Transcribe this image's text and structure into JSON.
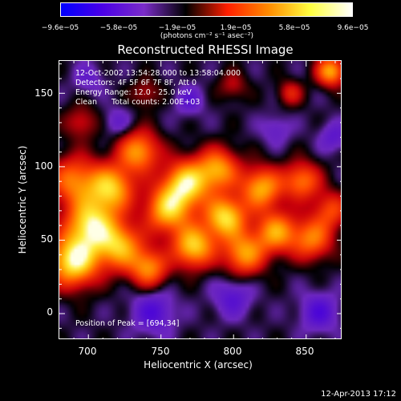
{
  "colorbar": {
    "ticks": [
      "−9.6e−05",
      "−5.8e−05",
      "−1.9e−05",
      "1.9e−05",
      "5.8e−05",
      "9.6e−05"
    ],
    "unit_label": "(photons cm⁻² s⁻¹ asec⁻²)",
    "colors": [
      "#0000ff",
      "#4a00e6",
      "#7a2cc8",
      "#000000",
      "#ff1e00",
      "#ff8c00",
      "#ffff40",
      "#ffffff"
    ]
  },
  "title": "Reconstructed RHESSI Image",
  "info": {
    "time_range": "12-Oct-2002 13:54:28.000 to 13:58:04.000",
    "detectors": "Detectors: 4F 5F 6F 7F 8F, Att 0",
    "energy": "Energy Range: 12.0 - 25.0 keV",
    "clean_label": "Clean",
    "counts": "Total counts: 2.00E+03",
    "peak": "Position of Peak = [694,34]"
  },
  "axes": {
    "xlabel": "Heliocentric X (arcsec)",
    "ylabel": "Heliocentric Y (arcsec)",
    "xticks": [
      "700",
      "750",
      "800",
      "850"
    ],
    "yticks": [
      "150",
      "100",
      "50",
      "0"
    ],
    "xlim": [
      680,
      875
    ],
    "ylim": [
      -18,
      172
    ]
  },
  "footer": {
    "timestamp": "12-Apr-2013 17:12"
  },
  "map": {
    "sources": [
      {
        "x": 690,
        "y": 35,
        "a": 1.0,
        "s": 12
      },
      {
        "x": 702,
        "y": 60,
        "a": 0.9,
        "s": 12
      },
      {
        "x": 690,
        "y": 90,
        "a": 0.6,
        "s": 12
      },
      {
        "x": 716,
        "y": 85,
        "a": 0.8,
        "s": 11
      },
      {
        "x": 722,
        "y": 45,
        "a": 0.75,
        "s": 11
      },
      {
        "x": 735,
        "y": 110,
        "a": 0.7,
        "s": 10
      },
      {
        "x": 742,
        "y": 30,
        "a": 0.65,
        "s": 9
      },
      {
        "x": 755,
        "y": 70,
        "a": 0.8,
        "s": 11
      },
      {
        "x": 768,
        "y": 88,
        "a": 0.9,
        "s": 11
      },
      {
        "x": 773,
        "y": 45,
        "a": 0.85,
        "s": 10
      },
      {
        "x": 790,
        "y": 98,
        "a": 0.7,
        "s": 10
      },
      {
        "x": 795,
        "y": 65,
        "a": 0.9,
        "s": 10
      },
      {
        "x": 808,
        "y": 40,
        "a": 0.7,
        "s": 10
      },
      {
        "x": 820,
        "y": 85,
        "a": 0.75,
        "s": 10
      },
      {
        "x": 830,
        "y": 55,
        "a": 0.7,
        "s": 10
      },
      {
        "x": 848,
        "y": 90,
        "a": 0.6,
        "s": 9
      },
      {
        "x": 855,
        "y": 50,
        "a": 0.6,
        "s": 10
      },
      {
        "x": 868,
        "y": 70,
        "a": 0.45,
        "s": 9
      },
      {
        "x": 868,
        "y": 165,
        "a": 0.75,
        "s": 7
      },
      {
        "x": 840,
        "y": 150,
        "a": 0.35,
        "s": 6
      },
      {
        "x": 800,
        "y": 155,
        "a": 0.25,
        "s": 7
      },
      {
        "x": 740,
        "y": 150,
        "a": 0.25,
        "s": 7
      },
      {
        "x": 695,
        "y": 130,
        "a": 0.3,
        "s": 8
      },
      {
        "x": 745,
        "y": 0,
        "a": -0.35,
        "s": 10
      },
      {
        "x": 800,
        "y": 10,
        "a": -0.3,
        "s": 9
      },
      {
        "x": 860,
        "y": 0,
        "a": -0.35,
        "s": 9
      },
      {
        "x": 700,
        "y": 160,
        "a": -0.2,
        "s": 7
      },
      {
        "x": 770,
        "y": 145,
        "a": -0.25,
        "s": 7
      },
      {
        "x": 830,
        "y": 125,
        "a": -0.2,
        "s": 7
      },
      {
        "x": 720,
        "y": 130,
        "a": -0.2,
        "s": 7
      },
      {
        "x": 870,
        "y": 120,
        "a": -0.25,
        "s": 7
      }
    ],
    "baseline": -0.05,
    "grid_size": 80
  }
}
